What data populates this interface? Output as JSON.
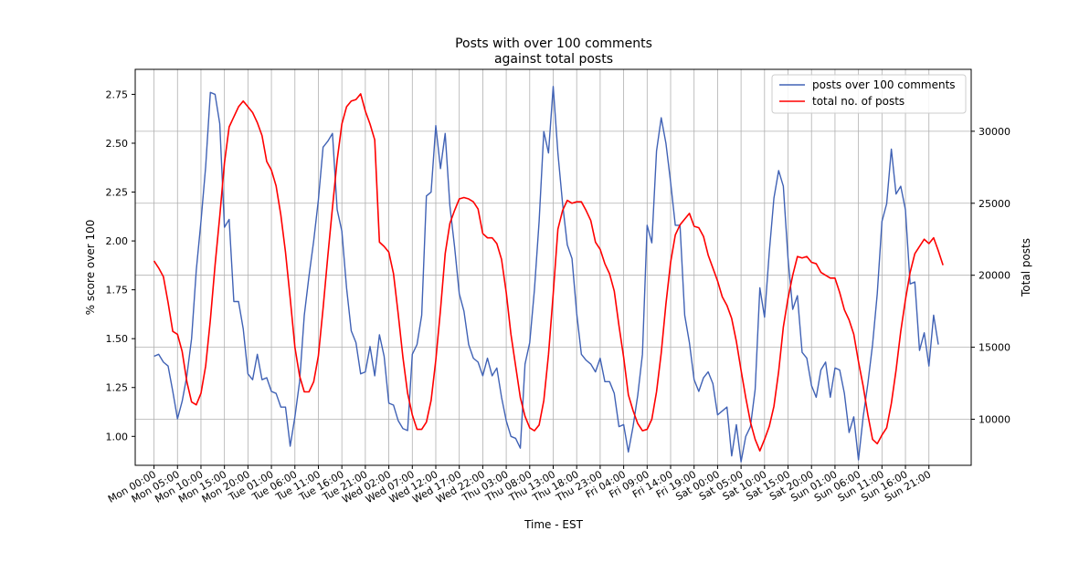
{
  "chart_data": {
    "type": "line",
    "title_line1": "Posts with over 100 comments",
    "title_line2": "against total posts",
    "xlabel": "Time - EST",
    "ylabel_left": "% score over 100",
    "ylabel_right": "Total posts",
    "x_tick_labels": [
      "Mon 00:00",
      "Mon 05:00",
      "Mon 10:00",
      "Mon 15:00",
      "Mon 20:00",
      "Tue 01:00",
      "Tue 06:00",
      "Tue 11:00",
      "Tue 16:00",
      "Tue 21:00",
      "Wed 02:00",
      "Wed 07:00",
      "Wed 12:00",
      "Wed 17:00",
      "Wed 22:00",
      "Thu 03:00",
      "Thu 08:00",
      "Thu 13:00",
      "Thu 18:00",
      "Thu 23:00",
      "Fri 04:00",
      "Fri 09:00",
      "Fri 14:00",
      "Fri 19:00",
      "Sat 00:00",
      "Sat 05:00",
      "Sat 10:00",
      "Sat 15:00",
      "Sat 20:00",
      "Sun 01:00",
      "Sun 06:00",
      "Sun 11:00",
      "Sun 16:00",
      "Sun 21:00"
    ],
    "x_start_hour": 0,
    "x_tick_step_hours": 5,
    "xlim_hours": [
      -4,
      174
    ],
    "ylim_left": [
      0.852,
      2.878
    ],
    "yticks_left": [
      1.0,
      1.25,
      1.5,
      1.75,
      2.0,
      2.25,
      2.5,
      2.75
    ],
    "ylim_right": [
      6800,
      34300
    ],
    "yticks_right": [
      10000,
      15000,
      20000,
      25000,
      30000
    ],
    "grid": true,
    "legend_position": "top-right",
    "series": [
      {
        "name": "posts over 100 comments",
        "axis": "left",
        "color": "#4062b5",
        "values": [
          1.41,
          1.42,
          1.38,
          1.36,
          1.23,
          1.09,
          1.18,
          1.31,
          1.5,
          1.85,
          2.1,
          2.38,
          2.76,
          2.75,
          2.6,
          2.07,
          2.11,
          1.69,
          1.69,
          1.55,
          1.32,
          1.29,
          1.42,
          1.29,
          1.3,
          1.23,
          1.22,
          1.15,
          1.15,
          0.95,
          1.1,
          1.28,
          1.62,
          1.82,
          2.0,
          2.21,
          2.48,
          2.51,
          2.55,
          2.16,
          2.05,
          1.76,
          1.54,
          1.48,
          1.32,
          1.33,
          1.46,
          1.31,
          1.52,
          1.41,
          1.17,
          1.16,
          1.08,
          1.04,
          1.03,
          1.42,
          1.47,
          1.62,
          2.23,
          2.25,
          2.59,
          2.37,
          2.55,
          2.18,
          1.97,
          1.73,
          1.64,
          1.47,
          1.4,
          1.38,
          1.31,
          1.4,
          1.31,
          1.35,
          1.2,
          1.08,
          1.0,
          0.99,
          0.94,
          1.37,
          1.48,
          1.75,
          2.1,
          2.56,
          2.45,
          2.79,
          2.45,
          2.19,
          1.98,
          1.91,
          1.63,
          1.42,
          1.39,
          1.37,
          1.33,
          1.4,
          1.28,
          1.28,
          1.22,
          1.05,
          1.06,
          0.92,
          1.05,
          1.21,
          1.42,
          2.08,
          1.99,
          2.46,
          2.63,
          2.5,
          2.3,
          2.08,
          2.08,
          1.62,
          1.48,
          1.29,
          1.23,
          1.3,
          1.33,
          1.27,
          1.11,
          1.13,
          1.15,
          0.9,
          1.06,
          0.87,
          1.0,
          1.05,
          1.24,
          1.76,
          1.61,
          1.94,
          2.22,
          2.36,
          2.28,
          1.91,
          1.65,
          1.72,
          1.43,
          1.4,
          1.26,
          1.2,
          1.34,
          1.38,
          1.2,
          1.35,
          1.34,
          1.22,
          1.02,
          1.1,
          0.88,
          1.1,
          1.27,
          1.47,
          1.73,
          2.1,
          2.19,
          2.47,
          2.24,
          2.28,
          2.16,
          1.78,
          1.79,
          1.44,
          1.53,
          1.36,
          1.62,
          1.47
        ]
      },
      {
        "name": "total no. of posts",
        "axis": "right",
        "color": "#ff0000",
        "values": [
          21000,
          20500,
          19900,
          18100,
          16100,
          15900,
          14700,
          12600,
          11200,
          11000,
          11800,
          13700,
          16900,
          20700,
          24100,
          27800,
          30300,
          31000,
          31700,
          32100,
          31700,
          31300,
          30600,
          29700,
          27900,
          27300,
          26200,
          24200,
          21600,
          18400,
          15000,
          13000,
          11900,
          11900,
          12600,
          14400,
          17700,
          21300,
          24700,
          28000,
          30500,
          31700,
          32100,
          32200,
          32600,
          31400,
          30500,
          29400,
          22300,
          22000,
          21600,
          20100,
          17300,
          14300,
          11800,
          10300,
          9300,
          9300,
          9800,
          11300,
          14100,
          17600,
          21500,
          23600,
          24500,
          25300,
          25400,
          25300,
          25100,
          24600,
          22900,
          22600,
          22600,
          22200,
          21100,
          18800,
          15900,
          13700,
          11500,
          10200,
          9400,
          9200,
          9600,
          11300,
          14500,
          18700,
          23200,
          24500,
          25200,
          25000,
          25100,
          25100,
          24500,
          23800,
          22300,
          21800,
          20800,
          20100,
          18900,
          16500,
          14300,
          11700,
          10600,
          9700,
          9200,
          9300,
          10000,
          11900,
          14600,
          18000,
          20900,
          22800,
          23500,
          23900,
          24300,
          23400,
          23300,
          22700,
          21400,
          20500,
          19600,
          18500,
          17900,
          17000,
          15400,
          13400,
          11500,
          9800,
          8600,
          7800,
          8600,
          9500,
          10900,
          13300,
          16400,
          18400,
          20000,
          21300,
          21200,
          21300,
          20900,
          20800,
          20200,
          20000,
          19800,
          19800,
          18800,
          17600,
          16900,
          15900,
          14000,
          12300,
          10300,
          8600,
          8300,
          8900,
          9400,
          11100,
          13400,
          16100,
          18300,
          20200,
          21500,
          22000,
          22500,
          22200,
          22600,
          21700,
          20700
        ]
      }
    ]
  }
}
